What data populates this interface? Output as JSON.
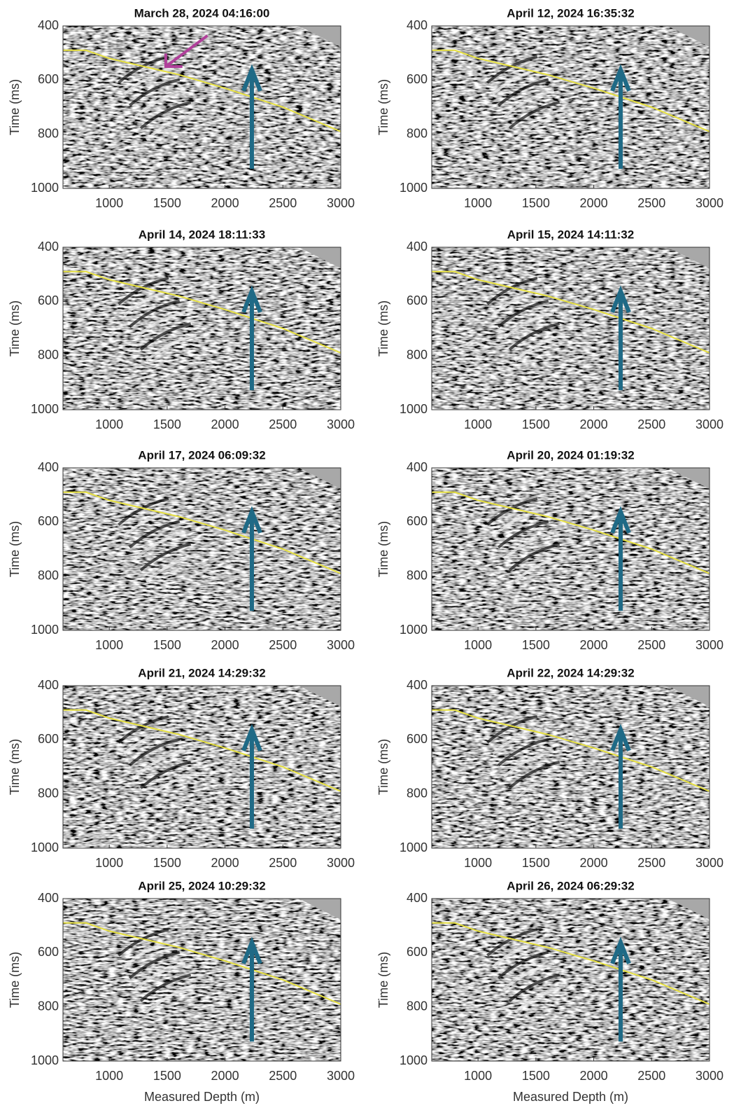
{
  "chart_data": [
    {
      "type": "seismic",
      "title": "March 28, 2024 04:16:00",
      "ylabel": "Time (ms)",
      "xlim": [
        600,
        3000
      ],
      "xticks": [
        1000,
        1500,
        2000,
        2500,
        3000
      ],
      "ylim": [
        400,
        1000
      ],
      "yticks": [
        400,
        600,
        800,
        1000
      ],
      "y_inverted": true,
      "horizon": {
        "color": "#e6e040",
        "x": [
          600,
          800,
          1000,
          1400,
          1600,
          2000,
          2500,
          3000
        ],
        "y": [
          490,
          490,
          520,
          560,
          580,
          630,
          700,
          790
        ]
      }
    },
    {
      "type": "seismic",
      "title": "April 12, 2024 16:35:32",
      "ylabel": "Time (ms)",
      "xlim": [
        600,
        3000
      ],
      "xticks": [
        1000,
        1500,
        2000,
        2500,
        3000
      ],
      "ylim": [
        400,
        1000
      ],
      "yticks": [
        400,
        600,
        800,
        1000
      ],
      "y_inverted": true,
      "horizon": {
        "color": "#e6e040",
        "x": [
          600,
          800,
          1000,
          1400,
          1600,
          2000,
          2500,
          3000
        ],
        "y": [
          490,
          490,
          520,
          560,
          580,
          630,
          700,
          790
        ]
      }
    },
    {
      "type": "seismic",
      "title": "April 14, 2024 18:11:33",
      "ylabel": "Time (ms)",
      "xlim": [
        600,
        3000
      ],
      "xticks": [
        1000,
        1500,
        2000,
        2500,
        3000
      ],
      "ylim": [
        400,
        1000
      ],
      "yticks": [
        400,
        600,
        800,
        1000
      ],
      "y_inverted": true,
      "horizon": {
        "color": "#e6e040",
        "x": [
          600,
          800,
          1000,
          1400,
          1600,
          2000,
          2500,
          3000
        ],
        "y": [
          490,
          490,
          520,
          560,
          580,
          630,
          700,
          790
        ]
      }
    },
    {
      "type": "seismic",
      "title": "April 15, 2024 14:11:32",
      "ylabel": "Time (ms)",
      "xlim": [
        600,
        3000
      ],
      "xticks": [
        1000,
        1500,
        2000,
        2500,
        3000
      ],
      "ylim": [
        400,
        1000
      ],
      "yticks": [
        400,
        600,
        800,
        1000
      ],
      "y_inverted": true,
      "horizon": {
        "color": "#e6e040",
        "x": [
          600,
          800,
          1000,
          1400,
          1600,
          2000,
          2500,
          3000
        ],
        "y": [
          490,
          490,
          520,
          560,
          580,
          630,
          700,
          790
        ]
      }
    },
    {
      "type": "seismic",
      "title": "April 17, 2024 06:09:32",
      "ylabel": "Time (ms)",
      "xlim": [
        600,
        3000
      ],
      "xticks": [
        1000,
        1500,
        2000,
        2500,
        3000
      ],
      "ylim": [
        400,
        1000
      ],
      "yticks": [
        400,
        600,
        800,
        1000
      ],
      "y_inverted": true,
      "horizon": {
        "color": "#e6e040",
        "x": [
          600,
          800,
          1000,
          1400,
          1600,
          2000,
          2500,
          3000
        ],
        "y": [
          490,
          490,
          520,
          560,
          580,
          630,
          700,
          790
        ]
      }
    },
    {
      "type": "seismic",
      "title": "April 20, 2024 01:19:32",
      "ylabel": "Time (ms)",
      "xlim": [
        600,
        3000
      ],
      "xticks": [
        1000,
        1500,
        2000,
        2500,
        3000
      ],
      "ylim": [
        400,
        1000
      ],
      "yticks": [
        400,
        600,
        800,
        1000
      ],
      "y_inverted": true,
      "horizon": {
        "color": "#e6e040",
        "x": [
          600,
          800,
          1000,
          1400,
          1600,
          2000,
          2500,
          3000
        ],
        "y": [
          490,
          490,
          520,
          560,
          580,
          630,
          700,
          790
        ]
      }
    },
    {
      "type": "seismic",
      "title": "April 21, 2024 14:29:32",
      "ylabel": "Time (ms)",
      "xlim": [
        600,
        3000
      ],
      "xticks": [
        1000,
        1500,
        2000,
        2500,
        3000
      ],
      "ylim": [
        400,
        1000
      ],
      "yticks": [
        400,
        600,
        800,
        1000
      ],
      "y_inverted": true,
      "horizon": {
        "color": "#e6e040",
        "x": [
          600,
          800,
          1000,
          1400,
          1600,
          2000,
          2500,
          3000
        ],
        "y": [
          490,
          490,
          520,
          560,
          580,
          630,
          700,
          790
        ]
      }
    },
    {
      "type": "seismic",
      "title": "April 22, 2024 14:29:32",
      "ylabel": "Time (ms)",
      "xlim": [
        600,
        3000
      ],
      "xticks": [
        1000,
        1500,
        2000,
        2500,
        3000
      ],
      "ylim": [
        400,
        1000
      ],
      "yticks": [
        400,
        600,
        800,
        1000
      ],
      "y_inverted": true,
      "horizon": {
        "color": "#e6e040",
        "x": [
          600,
          800,
          1000,
          1400,
          1600,
          2000,
          2500,
          3000
        ],
        "y": [
          490,
          490,
          520,
          560,
          580,
          630,
          700,
          790
        ]
      }
    },
    {
      "type": "seismic",
      "title": "April 25, 2024 10:29:32",
      "ylabel": "Time (ms)",
      "xlabel": "Measured Depth (m)",
      "xlim": [
        600,
        3000
      ],
      "xticks": [
        1000,
        1500,
        2000,
        2500,
        3000
      ],
      "ylim": [
        400,
        1000
      ],
      "yticks": [
        400,
        600,
        800,
        1000
      ],
      "y_inverted": true,
      "horizon": {
        "color": "#e6e040",
        "x": [
          600,
          800,
          1000,
          1400,
          1600,
          2000,
          2500,
          3000
        ],
        "y": [
          490,
          490,
          520,
          560,
          580,
          630,
          700,
          790
        ]
      }
    },
    {
      "type": "seismic",
      "title": "April 26, 2024 06:29:32",
      "ylabel": "Time (ms)",
      "xlabel": "Measured Depth (m)",
      "xlim": [
        600,
        3000
      ],
      "xticks": [
        1000,
        1500,
        2000,
        2500,
        3000
      ],
      "ylim": [
        400,
        1000
      ],
      "yticks": [
        400,
        600,
        800,
        1000
      ],
      "y_inverted": true,
      "horizon": {
        "color": "#e6e040",
        "x": [
          600,
          800,
          1000,
          1400,
          1600,
          2000,
          2500,
          3000
        ],
        "y": [
          490,
          490,
          520,
          560,
          580,
          630,
          700,
          790
        ]
      }
    }
  ]
}
